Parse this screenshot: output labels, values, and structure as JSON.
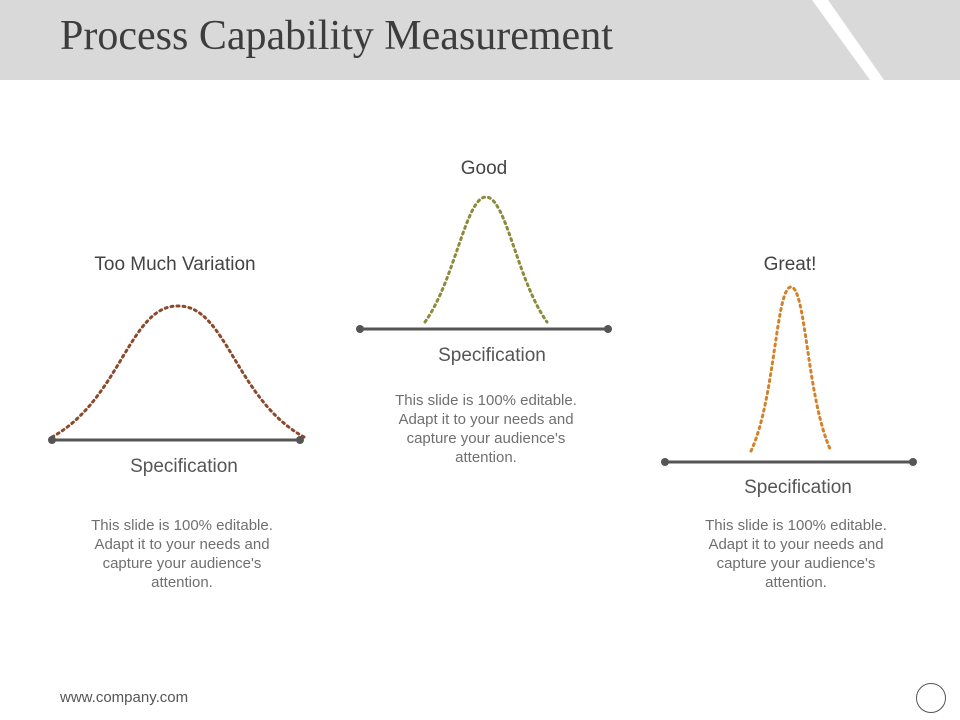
{
  "slide": {
    "title": "Process Capability Measurement",
    "footer": "www.company.com"
  },
  "panels": [
    {
      "caption": "Too Much Variation",
      "axis_label": "Specification",
      "description": "This slide is 100% editable. Adapt it to your needs and capture your audience's attention.",
      "curve_color": "#8B4A2B"
    },
    {
      "caption": "Good",
      "axis_label": "Specification",
      "description": "This slide is 100% editable. Adapt it to your needs and capture your audience's attention.",
      "curve_color": "#8C8A3C"
    },
    {
      "caption": "Great!",
      "axis_label": "Specification",
      "description": "This slide is 100% editable. Adapt it to your needs and capture your audience's attention.",
      "curve_color": "#D2822A"
    }
  ],
  "colors": {
    "title_bar": "#D9D9D9",
    "axis_line": "#555555"
  },
  "icons": {
    "nav": "circle-outline-icon"
  }
}
